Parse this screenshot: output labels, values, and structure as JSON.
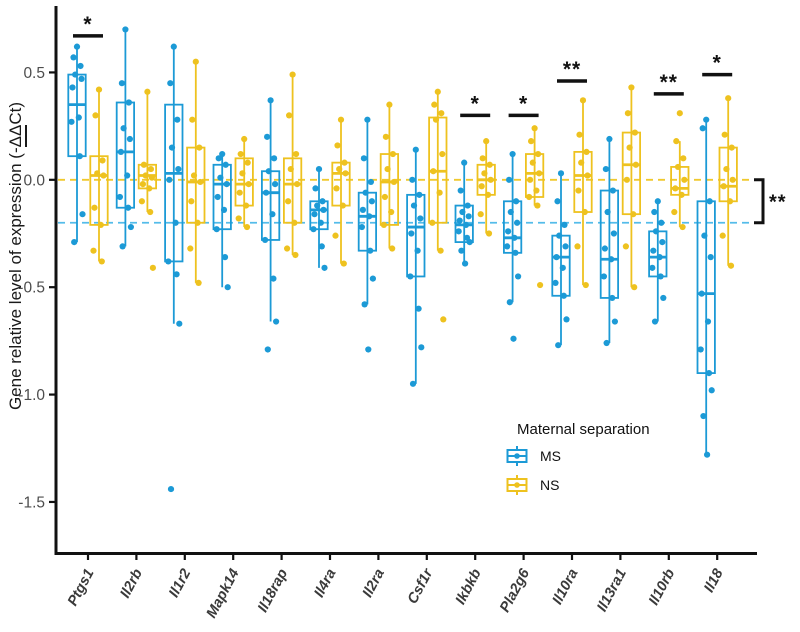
{
  "figure": {
    "y_axis": {
      "title_pre": "Gene relative level of expression (-",
      "title_underlined": "ΔΔ",
      "title_post": "Ct)"
    },
    "legend": {
      "title": "Maternal separation",
      "items": [
        {
          "label": "MS",
          "color": "#1C9AD6"
        },
        {
          "label": "NS",
          "color": "#EEC21F"
        }
      ]
    },
    "annotations": {
      "overall_comparison_label": "**"
    }
  },
  "chart_data": {
    "type": "boxplot",
    "title": "",
    "xlabel": "",
    "ylabel": "Gene relative level of expression (-ΔΔCt)",
    "ylim": [
      -1.74,
      0.8
    ],
    "yticks": [
      0.5,
      0.0,
      -0.5,
      -1.0,
      -1.5
    ],
    "ytick_labels": [
      "0.5",
      "0.0",
      "-0.5",
      "-1.0",
      "-1.5"
    ],
    "grid": false,
    "legend_position": "inside-bottom-right",
    "series": [
      {
        "name": "MS",
        "color": "#1C9AD6"
      },
      {
        "name": "NS",
        "color": "#EEC21F"
      }
    ],
    "reference_lines": [
      {
        "value": 0.0,
        "color": "#F0C92E",
        "style": "dashed"
      },
      {
        "value": -0.2,
        "color": "#54BCE9",
        "style": "dashed"
      }
    ],
    "overall_comparison": {
      "label": "**",
      "from_value": 0.0,
      "to_value": -0.2
    },
    "genes": [
      {
        "name": "Ptgs1",
        "significance": "*",
        "sig_line_v": 0.67,
        "MS": {
          "whisker_low": -0.29,
          "q1": 0.11,
          "median": 0.35,
          "q3": 0.49,
          "whisker_high": 0.62,
          "points": [
            0.62,
            0.57,
            0.53,
            0.49,
            0.47,
            0.43,
            0.29,
            0.27,
            0.11,
            -0.16,
            -0.29
          ]
        },
        "NS": {
          "whisker_low": -0.38,
          "q1": -0.21,
          "median": 0.02,
          "q3": 0.11,
          "whisker_high": 0.42,
          "points": [
            0.42,
            0.3,
            0.09,
            0.03,
            0.02,
            -0.13,
            -0.21,
            -0.33,
            -0.38
          ]
        }
      },
      {
        "name": "Il2rb",
        "significance": null,
        "sig_line_v": null,
        "MS": {
          "whisker_low": -0.31,
          "q1": -0.13,
          "median": 0.13,
          "q3": 0.36,
          "whisker_high": 0.7,
          "points": [
            0.7,
            0.45,
            0.36,
            0.24,
            0.19,
            0.13,
            0.02,
            -0.08,
            -0.13,
            -0.22,
            -0.31
          ]
        },
        "NS": {
          "whisker_low": -0.15,
          "q1": -0.04,
          "median": 0.02,
          "q3": 0.07,
          "whisker_high": 0.41,
          "points": [
            0.41,
            0.07,
            0.05,
            0.02,
            0.01,
            -0.02,
            -0.04,
            -0.1,
            -0.15,
            -0.41
          ]
        }
      },
      {
        "name": "Il1r2",
        "significance": null,
        "sig_line_v": null,
        "MS": {
          "whisker_low": -0.67,
          "q1": -0.38,
          "median": 0.03,
          "q3": 0.35,
          "whisker_high": 0.62,
          "points": [
            0.62,
            0.45,
            0.28,
            0.15,
            0.05,
            0.0,
            -0.2,
            -0.38,
            -0.44,
            -0.67,
            -1.44
          ]
        },
        "NS": {
          "whisker_low": -0.48,
          "q1": -0.2,
          "median": -0.01,
          "q3": 0.15,
          "whisker_high": 0.55,
          "points": [
            0.55,
            0.28,
            0.15,
            0.02,
            -0.01,
            -0.1,
            -0.2,
            -0.32,
            -0.48
          ]
        }
      },
      {
        "name": "Mapk14",
        "significance": null,
        "sig_line_v": null,
        "MS": {
          "whisker_low": -0.5,
          "q1": -0.23,
          "median": -0.02,
          "q3": 0.07,
          "whisker_high": 0.12,
          "points": [
            0.12,
            0.1,
            0.07,
            0.01,
            -0.02,
            -0.08,
            -0.14,
            -0.23,
            -0.36,
            -0.5
          ]
        },
        "NS": {
          "whisker_low": -0.22,
          "q1": -0.12,
          "median": -0.02,
          "q3": 0.1,
          "whisker_high": 0.19,
          "points": [
            0.19,
            0.12,
            0.08,
            0.03,
            -0.02,
            -0.06,
            -0.12,
            -0.18,
            -0.22
          ]
        }
      },
      {
        "name": "Il18rap",
        "significance": null,
        "sig_line_v": null,
        "MS": {
          "whisker_low": -0.66,
          "q1": -0.28,
          "median": -0.06,
          "q3": 0.04,
          "whisker_high": 0.37,
          "points": [
            0.37,
            0.2,
            0.1,
            0.04,
            -0.02,
            -0.06,
            -0.16,
            -0.28,
            -0.46,
            -0.66,
            -0.79
          ]
        },
        "NS": {
          "whisker_low": -0.35,
          "q1": -0.2,
          "median": -0.02,
          "q3": 0.1,
          "whisker_high": 0.49,
          "points": [
            0.49,
            0.3,
            0.12,
            0.05,
            -0.02,
            -0.1,
            -0.2,
            -0.32,
            -0.35
          ]
        }
      },
      {
        "name": "Il4ra",
        "significance": null,
        "sig_line_v": null,
        "MS": {
          "whisker_low": -0.41,
          "q1": -0.23,
          "median": -0.14,
          "q3": -0.1,
          "whisker_high": 0.05,
          "points": [
            0.05,
            -0.04,
            -0.1,
            -0.12,
            -0.14,
            -0.16,
            -0.2,
            -0.23,
            -0.31,
            -0.41
          ]
        },
        "NS": {
          "whisker_low": -0.39,
          "q1": -0.12,
          "median": 0.03,
          "q3": 0.08,
          "whisker_high": 0.28,
          "points": [
            0.28,
            0.16,
            0.08,
            0.05,
            0.03,
            -0.04,
            -0.12,
            -0.26,
            -0.39
          ]
        }
      },
      {
        "name": "Il2ra",
        "significance": null,
        "sig_line_v": null,
        "MS": {
          "whisker_low": -0.58,
          "q1": -0.33,
          "median": -0.17,
          "q3": -0.06,
          "whisker_high": 0.28,
          "points": [
            0.28,
            0.1,
            -0.01,
            -0.06,
            -0.1,
            -0.14,
            -0.17,
            -0.22,
            -0.33,
            -0.46,
            -0.58,
            -0.79
          ]
        },
        "NS": {
          "whisker_low": -0.32,
          "q1": -0.21,
          "median": -0.01,
          "q3": 0.12,
          "whisker_high": 0.35,
          "points": [
            0.35,
            0.2,
            0.12,
            0.05,
            -0.01,
            -0.08,
            -0.15,
            -0.21,
            -0.32
          ]
        }
      },
      {
        "name": "Csf1r",
        "significance": null,
        "sig_line_v": null,
        "MS": {
          "whisker_low": -0.95,
          "q1": -0.45,
          "median": -0.22,
          "q3": -0.07,
          "whisker_high": 0.14,
          "points": [
            0.14,
            0.0,
            -0.07,
            -0.12,
            -0.18,
            -0.25,
            -0.33,
            -0.45,
            -0.6,
            -0.78,
            -0.95
          ]
        },
        "NS": {
          "whisker_low": -0.33,
          "q1": -0.2,
          "median": 0.04,
          "q3": 0.29,
          "whisker_high": 0.41,
          "points": [
            0.41,
            0.35,
            0.31,
            0.28,
            0.12,
            0.04,
            -0.06,
            -0.2,
            -0.33,
            -0.65
          ]
        }
      },
      {
        "name": "Ikbkb",
        "significance": "*",
        "sig_line_v": 0.3,
        "MS": {
          "whisker_low": -0.39,
          "q1": -0.29,
          "median": -0.21,
          "q3": -0.12,
          "whisker_high": 0.08,
          "points": [
            0.08,
            -0.05,
            -0.12,
            -0.15,
            -0.17,
            -0.19,
            -0.21,
            -0.24,
            -0.27,
            -0.29,
            -0.33,
            -0.39
          ]
        },
        "NS": {
          "whisker_low": -0.25,
          "q1": -0.07,
          "median": 0.0,
          "q3": 0.07,
          "whisker_high": 0.18,
          "points": [
            0.18,
            0.1,
            0.07,
            0.03,
            0.0,
            -0.03,
            -0.07,
            -0.16,
            -0.25
          ]
        }
      },
      {
        "name": "Pla2g6",
        "significance": "*",
        "sig_line_v": 0.3,
        "MS": {
          "whisker_low": -0.57,
          "q1": -0.34,
          "median": -0.27,
          "q3": -0.1,
          "whisker_high": 0.12,
          "points": [
            0.12,
            0.0,
            -0.1,
            -0.15,
            -0.2,
            -0.24,
            -0.27,
            -0.31,
            -0.34,
            -0.45,
            -0.57,
            -0.74
          ]
        },
        "NS": {
          "whisker_low": -0.12,
          "q1": -0.08,
          "median": 0.03,
          "q3": 0.12,
          "whisker_high": 0.24,
          "points": [
            0.24,
            0.18,
            0.12,
            0.08,
            0.03,
            0.0,
            -0.05,
            -0.08,
            -0.12,
            -0.49
          ]
        }
      },
      {
        "name": "Il10ra",
        "significance": "**",
        "sig_line_v": 0.46,
        "MS": {
          "whisker_low": -0.77,
          "q1": -0.54,
          "median": -0.36,
          "q3": -0.26,
          "whisker_high": 0.03,
          "points": [
            0.03,
            -0.1,
            -0.21,
            -0.26,
            -0.31,
            -0.36,
            -0.41,
            -0.48,
            -0.54,
            -0.65,
            -0.77
          ]
        },
        "NS": {
          "whisker_low": -0.49,
          "q1": -0.15,
          "median": 0.02,
          "q3": 0.13,
          "whisker_high": 0.37,
          "points": [
            0.37,
            0.21,
            0.13,
            0.08,
            0.02,
            -0.05,
            -0.15,
            -0.31,
            -0.49
          ]
        }
      },
      {
        "name": "Il13ra1",
        "significance": null,
        "sig_line_v": null,
        "MS": {
          "whisker_low": -0.76,
          "q1": -0.55,
          "median": -0.37,
          "q3": -0.05,
          "whisker_high": 0.19,
          "points": [
            0.19,
            0.05,
            -0.05,
            -0.15,
            -0.25,
            -0.32,
            -0.37,
            -0.45,
            -0.55,
            -0.66,
            -0.76
          ]
        },
        "NS": {
          "whisker_low": -0.5,
          "q1": -0.16,
          "median": 0.07,
          "q3": 0.22,
          "whisker_high": 0.43,
          "points": [
            0.43,
            0.31,
            0.22,
            0.15,
            0.07,
            0.0,
            -0.16,
            -0.31,
            -0.5
          ]
        }
      },
      {
        "name": "Il10rb",
        "significance": "**",
        "sig_line_v": 0.4,
        "MS": {
          "whisker_low": -0.66,
          "q1": -0.45,
          "median": -0.36,
          "q3": -0.24,
          "whisker_high": -0.1,
          "points": [
            -0.1,
            -0.15,
            -0.2,
            -0.24,
            -0.29,
            -0.33,
            -0.36,
            -0.41,
            -0.45,
            -0.55,
            -0.66
          ]
        },
        "NS": {
          "whisker_low": -0.22,
          "q1": -0.07,
          "median": -0.04,
          "q3": 0.06,
          "whisker_high": 0.18,
          "points": [
            0.31,
            0.18,
            0.1,
            0.06,
            0.0,
            -0.04,
            -0.07,
            -0.15,
            -0.22
          ]
        }
      },
      {
        "name": "Il18",
        "significance": "*",
        "sig_line_v": 0.49,
        "MS": {
          "whisker_low": -1.28,
          "q1": -0.9,
          "median": -0.53,
          "q3": -0.1,
          "whisker_high": 0.28,
          "points": [
            0.28,
            0.24,
            -0.1,
            -0.26,
            -0.36,
            -0.53,
            -0.66,
            -0.79,
            -0.9,
            -0.98,
            -1.1,
            -1.28
          ]
        },
        "NS": {
          "whisker_low": -0.4,
          "q1": -0.1,
          "median": -0.03,
          "q3": 0.15,
          "whisker_high": 0.38,
          "points": [
            0.38,
            0.21,
            0.15,
            0.05,
            0.0,
            -0.03,
            -0.1,
            -0.26,
            -0.4
          ]
        }
      }
    ]
  }
}
